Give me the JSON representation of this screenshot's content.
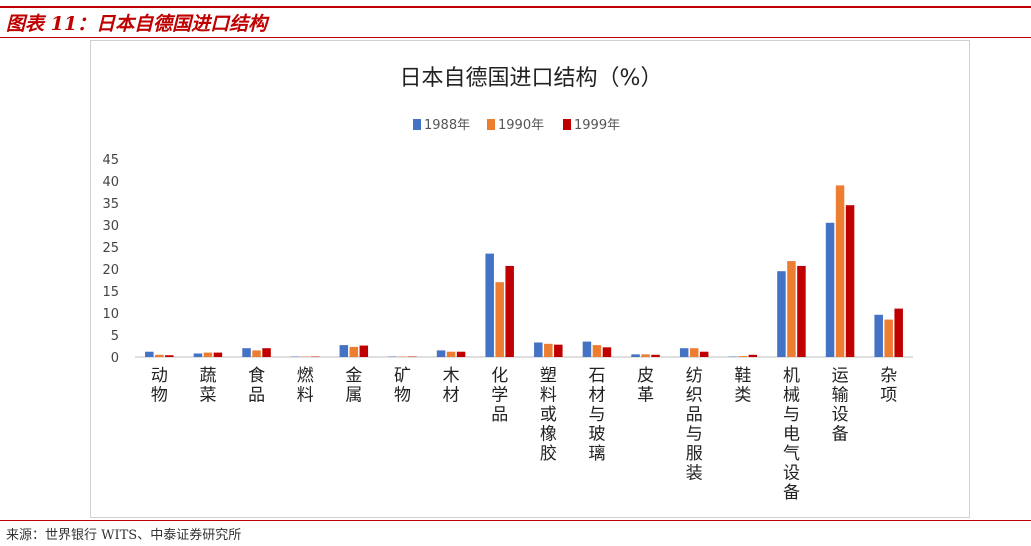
{
  "figure": {
    "label": "图表 11：",
    "caption": "日本自德国进口结构",
    "source": "来源：世界银行 WITS、中泰证券研究所"
  },
  "chart_data": {
    "type": "bar",
    "title": "日本自德国进口结构（%）",
    "xlabel": "",
    "ylabel": "",
    "ylim": [
      0,
      45
    ],
    "yticks": [
      0,
      5,
      10,
      15,
      20,
      25,
      30,
      35,
      40,
      45
    ],
    "grid": false,
    "legend_position": "top",
    "categories": [
      "动物",
      "蔬菜",
      "食品",
      "燃料",
      "金属",
      "矿物",
      "木材",
      "化学品",
      "塑料或橡胶",
      "石材与玻璃",
      "皮革",
      "纺织品与服装",
      "鞋类",
      "机械与电气设备",
      "运输设备",
      "杂项"
    ],
    "series": [
      {
        "name": "1988年",
        "color": "#4472c4",
        "values": [
          1.2,
          0.8,
          2.0,
          0.1,
          2.7,
          0.1,
          1.5,
          23.5,
          3.3,
          3.5,
          0.6,
          2.0,
          0.1,
          19.5,
          30.5,
          9.6
        ]
      },
      {
        "name": "1990年",
        "color": "#ed7d31",
        "values": [
          0.5,
          1.0,
          1.5,
          0.1,
          2.3,
          0.1,
          1.2,
          17.0,
          3.0,
          2.7,
          0.6,
          2.0,
          0.2,
          21.8,
          39.0,
          8.5
        ]
      },
      {
        "name": "1999年",
        "color": "#c00000",
        "values": [
          0.4,
          1.0,
          2.0,
          0.1,
          2.6,
          0.1,
          1.2,
          20.7,
          2.8,
          2.2,
          0.5,
          1.2,
          0.5,
          20.7,
          34.5,
          11.0
        ]
      }
    ]
  }
}
